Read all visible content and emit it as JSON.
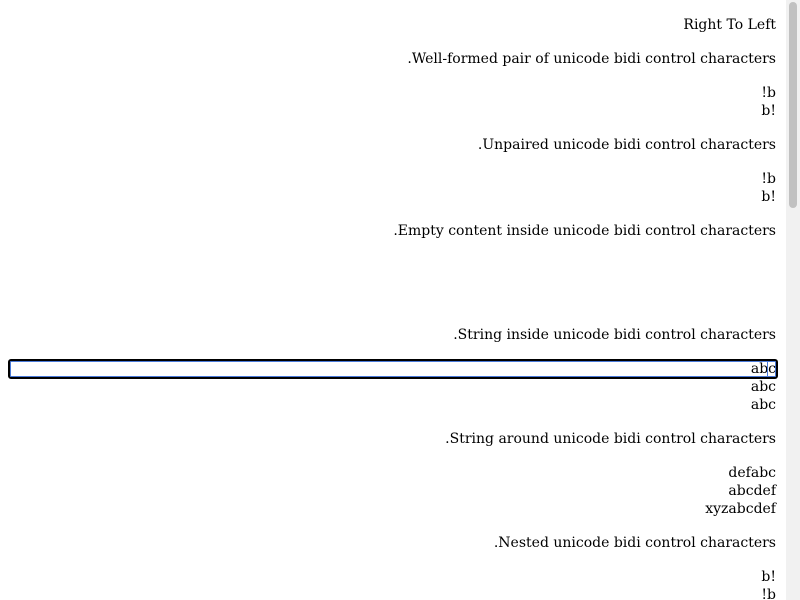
{
  "title": "Right To Left",
  "sections": {
    "well_formed": {
      "heading": ".Well-formed pair of unicode bidi control characters",
      "line1": "!b",
      "line2": "b!"
    },
    "unpaired": {
      "heading": ".Unpaired unicode bidi control characters",
      "line1": "!b",
      "line2": "b!"
    },
    "empty": {
      "heading": ".Empty content inside unicode bidi control characters"
    },
    "string_inside": {
      "heading": ".String inside unicode bidi control characters",
      "line1": "abc",
      "line2": "abc",
      "line3": "abc"
    },
    "string_around": {
      "heading": ".String around unicode bidi control characters",
      "line1": "defabc",
      "line2": "abcdef",
      "line3": "xyzabcdef"
    },
    "nested": {
      "heading": ".Nested unicode bidi control characters",
      "line1": "b!",
      "line2": "!b"
    }
  },
  "colors": {
    "focus_ring": "#4a7ad9",
    "scrollbar_track": "#f1f1f1",
    "scrollbar_thumb": "#c1c1c1"
  }
}
